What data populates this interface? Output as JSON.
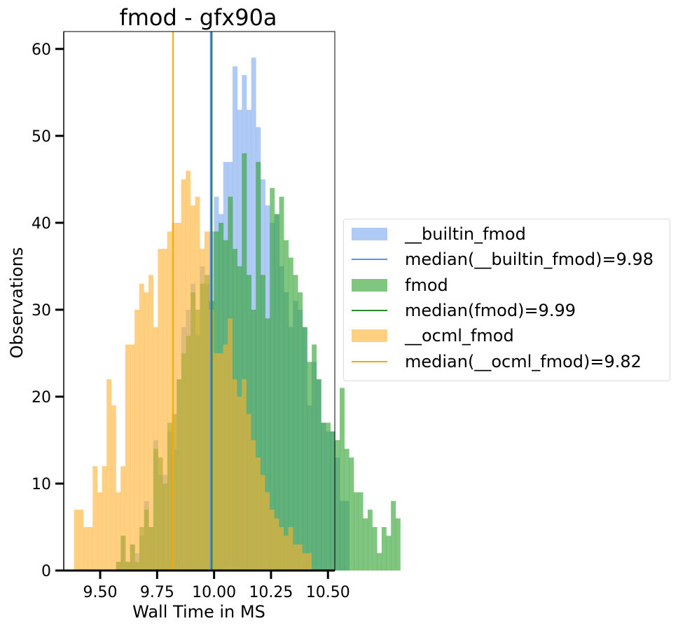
{
  "chart_data": {
    "type": "histogram",
    "title": "fmod - gfx90a",
    "xlabel": "Wall Time in MS",
    "ylabel": "Observations",
    "xlim": [
      9.34,
      10.53
    ],
    "ylim": [
      0,
      62
    ],
    "xticks": [
      9.5,
      9.75,
      10.0,
      10.25,
      10.5
    ],
    "xtick_labels": [
      "9.50",
      "9.75",
      "10.00",
      "10.25",
      "10.50"
    ],
    "yticks": [
      0,
      10,
      20,
      30,
      40,
      50,
      60
    ],
    "ytick_labels": [
      "0",
      "10",
      "20",
      "30",
      "40",
      "50",
      "60"
    ],
    "bin_width": 0.02045,
    "legend_position": "center-right, outside plot",
    "series": [
      {
        "name": "__builtin_fmod",
        "color": "#6d9eeb",
        "opacity": 0.55,
        "bin_start": 9.57,
        "values": [
          1,
          4,
          1,
          3,
          2,
          4,
          8,
          5,
          15,
          11,
          11,
          16,
          14,
          22,
          28,
          30,
          33,
          27,
          35,
          33,
          39,
          43,
          41,
          47,
          47,
          58,
          53,
          57,
          53,
          59,
          51,
          45,
          42,
          40,
          41,
          35,
          32,
          28,
          31,
          30,
          28,
          19,
          24,
          22,
          17,
          16,
          16,
          13,
          8,
          8
        ]
      },
      {
        "name": "fmod",
        "color": "#2ca02c",
        "opacity": 0.6,
        "bin_start": 9.57,
        "values": [
          1,
          4,
          1,
          3,
          1,
          5,
          7,
          5,
          14,
          13,
          10,
          17,
          18,
          22,
          25,
          27,
          32,
          30,
          33,
          34,
          31,
          39,
          40,
          38,
          43,
          37,
          35,
          48,
          34,
          30,
          47,
          34,
          29,
          44,
          41,
          43,
          38,
          36,
          34,
          32,
          28,
          24,
          26,
          22,
          17,
          17,
          16,
          15,
          21,
          14,
          13,
          9,
          9,
          6,
          7,
          5,
          2,
          5,
          4,
          8,
          6
        ]
      },
      {
        "name": "__ocml_fmod",
        "color": "#ffb02e",
        "opacity": 0.6,
        "bin_start": 9.385,
        "values": [
          7,
          7,
          5,
          5,
          12,
          9,
          12,
          22,
          19,
          9,
          12,
          26,
          26,
          30,
          33,
          32,
          34,
          28,
          37,
          37,
          39,
          40,
          40,
          45,
          46,
          42,
          43,
          37,
          39,
          30,
          25,
          25,
          26,
          29,
          22,
          20,
          22,
          18,
          15,
          13,
          11,
          9,
          7,
          6,
          5,
          4,
          5,
          3,
          3,
          2,
          2
        ]
      }
    ],
    "medians": [
      {
        "name": "median(__builtin_fmod)=9.98",
        "value": 9.985,
        "color": "#5b8ff0"
      },
      {
        "name": "median(fmod)=9.99",
        "value": 9.99,
        "color": "#2a8a2a"
      },
      {
        "name": "median(__ocml_fmod)=9.82",
        "value": 9.82,
        "color": "#ffa500"
      }
    ],
    "legend": [
      {
        "label": "__builtin_fmod",
        "kind": "patch",
        "color": "#6d9eeb",
        "opacity": 0.55
      },
      {
        "label": "median(__builtin_fmod)=9.98",
        "kind": "line",
        "color": "#5b8ff0"
      },
      {
        "label": "fmod",
        "kind": "patch",
        "color": "#2ca02c",
        "opacity": 0.6
      },
      {
        "label": "median(fmod)=9.99",
        "kind": "line",
        "color": "#2a8a2a"
      },
      {
        "label": "__ocml_fmod",
        "kind": "patch",
        "color": "#ffb02e",
        "opacity": 0.6
      },
      {
        "label": "median(__ocml_fmod)=9.82",
        "kind": "line",
        "color": "#ffa500"
      }
    ]
  }
}
